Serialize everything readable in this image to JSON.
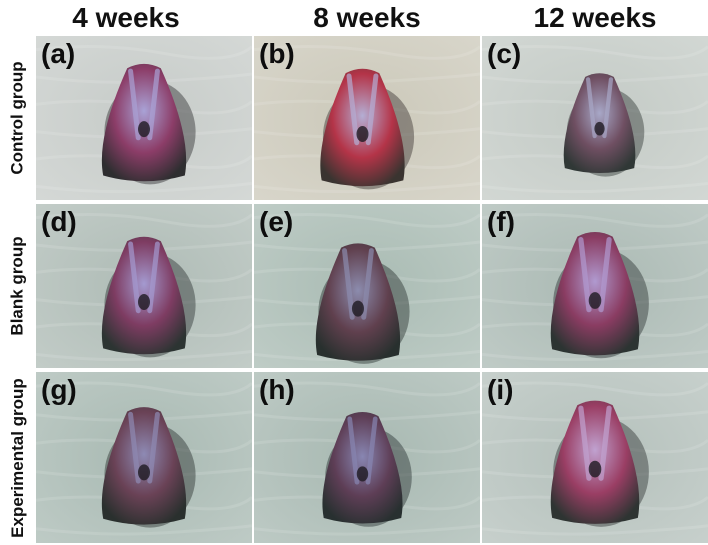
{
  "columns": [
    "4 weeks",
    "8 weeks",
    "12 weeks"
  ],
  "rows": [
    "Control group",
    "Blank group",
    "Experimental group"
  ],
  "panels": [
    {
      "label": "(a)",
      "cloth": "#c6cbc8",
      "tissue": "#8c3d68",
      "highlight": "#a9a2d6",
      "shadow": "#2e2e30"
    },
    {
      "label": "(b)",
      "cloth": "#cbc8b9",
      "tissue": "#b43448",
      "highlight": "#b4aed4",
      "shadow": "#3a3430"
    },
    {
      "label": "(c)",
      "cloth": "#c3cac5",
      "tissue": "#6f4f62",
      "highlight": "#a8a8c8",
      "shadow": "#303836"
    },
    {
      "label": "(d)",
      "cloth": "#aebbb5",
      "tissue": "#7e3c62",
      "highlight": "#a49ad0",
      "shadow": "#2c3432"
    },
    {
      "label": "(e)",
      "cloth": "#a9bbb3",
      "tissue": "#60404e",
      "highlight": "#8c8cae",
      "shadow": "#28302e"
    },
    {
      "label": "(f)",
      "cloth": "#aab9b3",
      "tissue": "#8a3c62",
      "highlight": "#b09ad0",
      "shadow": "#2c3432"
    },
    {
      "label": "(g)",
      "cloth": "#a8b9b2",
      "tissue": "#6a4256",
      "highlight": "#8e8ab4",
      "shadow": "#2a302e"
    },
    {
      "label": "(h)",
      "cloth": "#a7b8b1",
      "tissue": "#5e3e56",
      "highlight": "#8886b2",
      "shadow": "#283030"
    },
    {
      "label": "(i)",
      "cloth": "#b4c0bb",
      "tissue": "#9a3e64",
      "highlight": "#c0a2d0",
      "shadow": "#2e3432"
    }
  ]
}
